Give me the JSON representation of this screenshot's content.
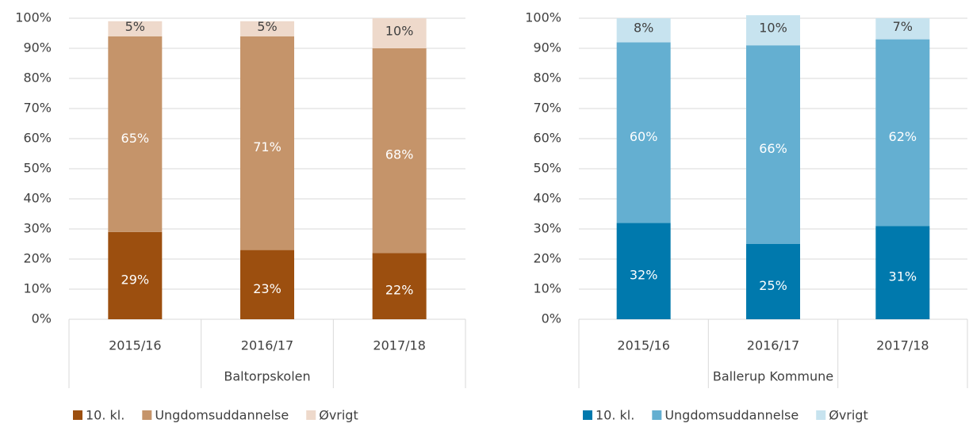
{
  "chart_data": [
    {
      "type": "bar",
      "stacked": true,
      "group_label": "Baltorpskolen",
      "categories": [
        "2015/16",
        "2016/17",
        "2017/18"
      ],
      "series": [
        {
          "name": "10. kl.",
          "color": "#9c4f0f",
          "label_color": "#ffffff",
          "values": [
            29,
            23,
            22
          ],
          "value_labels": [
            "29%",
            "23%",
            "22%"
          ]
        },
        {
          "name": "Ungdomsuddannelse",
          "color": "#c5946a",
          "label_color": "#ffffff",
          "values": [
            65,
            71,
            68
          ],
          "value_labels": [
            "65%",
            "71%",
            "68%"
          ]
        },
        {
          "name": "Øvrigt",
          "color": "#eed9cb",
          "label_color": "#404040",
          "values": [
            5,
            5,
            10
          ],
          "value_labels": [
            "5%",
            "5%",
            "10%"
          ]
        }
      ],
      "ylim": [
        0,
        100
      ],
      "yticks": [
        {
          "value": 0,
          "label": "0%"
        },
        {
          "value": 10,
          "label": "10%"
        },
        {
          "value": 20,
          "label": "20%"
        },
        {
          "value": 30,
          "label": "30%"
        },
        {
          "value": 40,
          "label": "40%"
        },
        {
          "value": 50,
          "label": "50%"
        },
        {
          "value": 60,
          "label": "60%"
        },
        {
          "value": 70,
          "label": "70%"
        },
        {
          "value": 80,
          "label": "80%"
        },
        {
          "value": 90,
          "label": "90%"
        },
        {
          "value": 100,
          "label": "100%"
        }
      ],
      "grid": true,
      "legend": "bottom"
    },
    {
      "type": "bar",
      "stacked": true,
      "group_label": "Ballerup Kommune",
      "categories": [
        "2015/16",
        "2016/17",
        "2017/18"
      ],
      "series": [
        {
          "name": "10. kl.",
          "color": "#0079ad",
          "label_color": "#ffffff",
          "values": [
            32,
            25,
            31
          ],
          "value_labels": [
            "32%",
            "25%",
            "31%"
          ]
        },
        {
          "name": "Ungdomsuddannelse",
          "color": "#64afd1",
          "label_color": "#ffffff",
          "values": [
            60,
            66,
            62
          ],
          "value_labels": [
            "60%",
            "66%",
            "62%"
          ]
        },
        {
          "name": "Øvrigt",
          "color": "#c7e3ef",
          "label_color": "#404040",
          "values": [
            8,
            10,
            7
          ],
          "value_labels": [
            "8%",
            "10%",
            "7%"
          ]
        }
      ],
      "ylim": [
        0,
        100
      ],
      "yticks": [
        {
          "value": 0,
          "label": "0%"
        },
        {
          "value": 10,
          "label": "10%"
        },
        {
          "value": 20,
          "label": "20%"
        },
        {
          "value": 30,
          "label": "30%"
        },
        {
          "value": 40,
          "label": "40%"
        },
        {
          "value": 50,
          "label": "50%"
        },
        {
          "value": 60,
          "label": "60%"
        },
        {
          "value": 70,
          "label": "70%"
        },
        {
          "value": 80,
          "label": "80%"
        },
        {
          "value": 90,
          "label": "90%"
        },
        {
          "value": 100,
          "label": "100%"
        }
      ],
      "grid": true,
      "legend": "bottom"
    }
  ]
}
